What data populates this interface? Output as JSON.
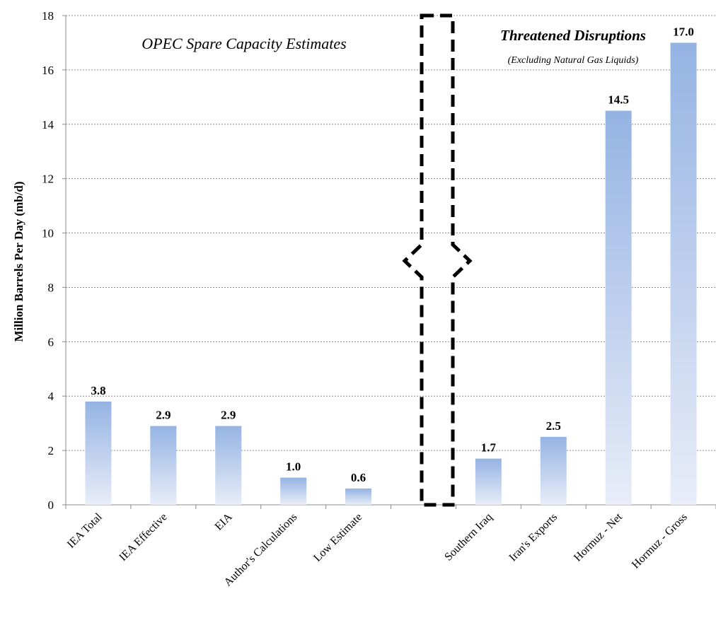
{
  "chart_data": {
    "type": "bar",
    "ylabel": "Million Barrels Per Day (mb/d)",
    "ylim": [
      0,
      18
    ],
    "yticks": [
      0,
      2,
      4,
      6,
      8,
      10,
      12,
      14,
      16,
      18
    ],
    "grid": true,
    "categories": [
      "IEA Total",
      "IEA Effective",
      "EIA",
      "Author's Calculations",
      "Low Estimate",
      "",
      "Southern Iraq",
      "Iran's Exports",
      "Hormuz - Net",
      "Hormuz - Gross"
    ],
    "values": [
      3.8,
      2.9,
      2.9,
      1.0,
      0.6,
      null,
      1.7,
      2.5,
      14.5,
      17.0
    ],
    "data_labels": [
      "3.8",
      "2.9",
      "2.9",
      "1.0",
      "0.6",
      "",
      "1.7",
      "2.5",
      "14.5",
      "17.0"
    ],
    "annotations": {
      "left_group": "OPEC Spare Capacity Estimates",
      "right_group": "Threatened Disruptions",
      "right_group_sub": "(Excluding Natural Gas Liquids)"
    },
    "colors": {
      "bar_top": "#95b3e3",
      "bar_bottom": "#e6ecf7",
      "divider": "#000000"
    }
  }
}
